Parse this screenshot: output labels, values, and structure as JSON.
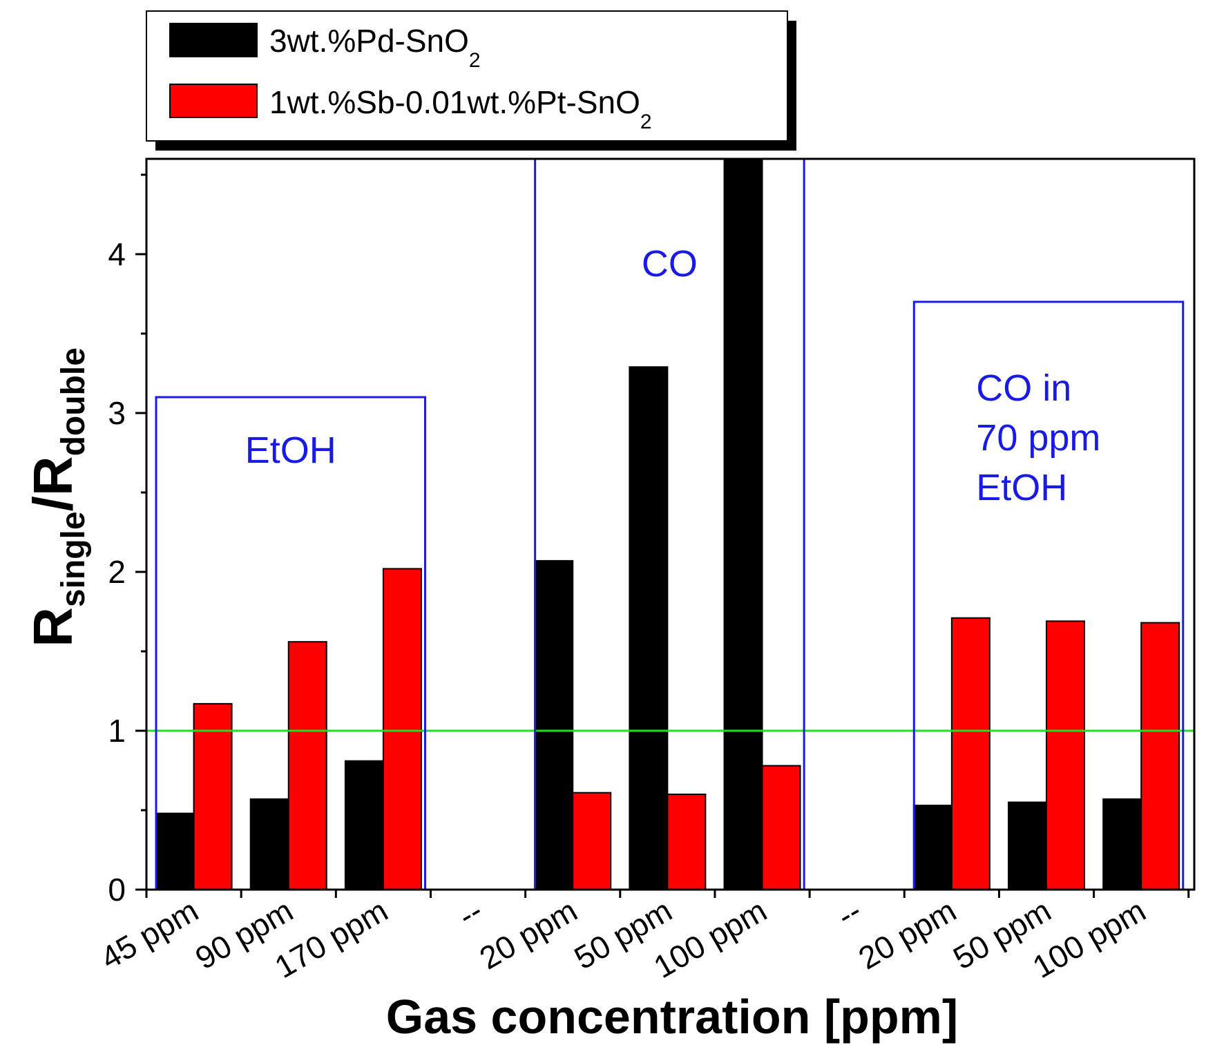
{
  "chart_data": {
    "type": "bar",
    "title": "",
    "xlabel": "Gas concentration [ppm]",
    "ylabel": {
      "main1": "R",
      "sub1": "single",
      "main2": "/R",
      "sub2": "double"
    },
    "ylim": [
      0,
      4.6
    ],
    "yticks": [
      0,
      1,
      2,
      3,
      4
    ],
    "categories": [
      "45 ppm",
      "90 ppm",
      "170 ppm",
      "--",
      "20 ppm",
      "50 ppm",
      "100 ppm",
      "--",
      "20 ppm",
      "50 ppm",
      "100 ppm"
    ],
    "series": [
      {
        "name": "3wt.%Pd-SnO2",
        "legend_main": "3wt.%Pd-SnO",
        "legend_sub": "2",
        "color": "#000000",
        "values": [
          0.48,
          0.57,
          0.81,
          null,
          2.07,
          3.29,
          4.6,
          null,
          0.53,
          0.55,
          0.57
        ]
      },
      {
        "name": "1wt.%Sb-0.01wt.%Pt-SnO2",
        "legend_main": "1wt.%Sb-0.01wt.%Pt-SnO",
        "legend_sub": "2",
        "color": "#ff0000",
        "values": [
          1.17,
          1.56,
          2.02,
          null,
          0.61,
          0.6,
          0.78,
          null,
          1.71,
          1.69,
          1.68
        ]
      }
    ],
    "reference_line": {
      "y": 1,
      "color": "#22dd22"
    },
    "groups": [
      {
        "label_lines": [
          "EtOH"
        ],
        "from": 0,
        "to": 2,
        "box_top": 3.1
      },
      {
        "label_lines": [
          "CO"
        ],
        "from": 4,
        "to": 6,
        "box_top": 4.6
      },
      {
        "label_lines": [
          "CO in",
          "70 ppm",
          "EtOH"
        ],
        "from": 8,
        "to": 10,
        "box_top": 3.7
      }
    ],
    "group_box_color": "#1a1ae6",
    "legend_position": "top-left, outside plot"
  }
}
